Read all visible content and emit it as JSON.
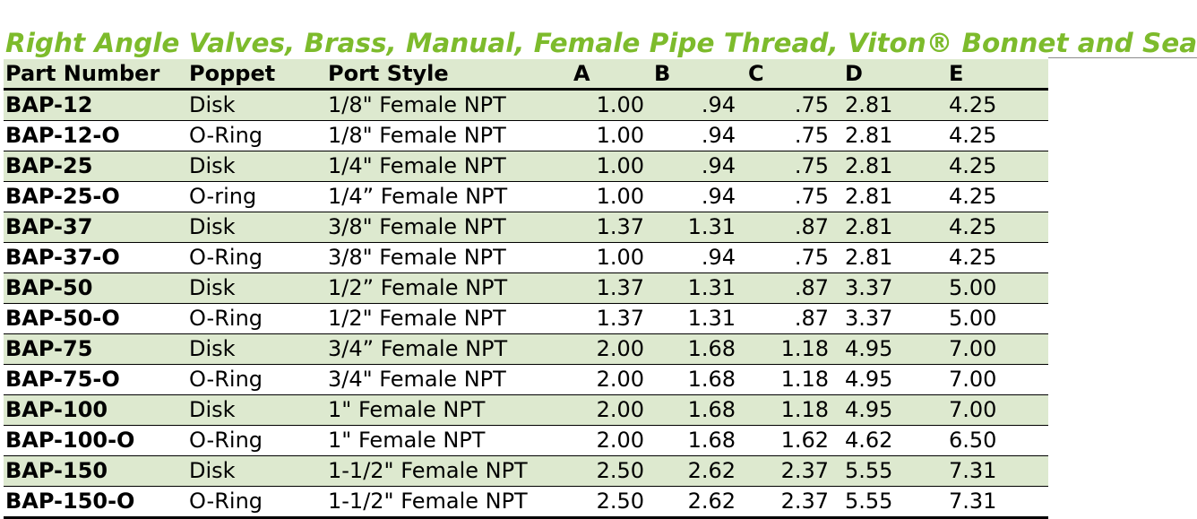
{
  "title": "Right Angle Valves, Brass, Manual, Female Pipe Thread, Viton® Bonnet and Seal",
  "colors": {
    "title": "#7dbb2c",
    "row_shade": "#dde9cf"
  },
  "table": {
    "headers": [
      "Part Number",
      "Poppet",
      "Port Style",
      "A",
      "B",
      "C",
      "D",
      "E"
    ],
    "rows": [
      [
        "BAP-12",
        "Disk",
        "1/8\" Female NPT",
        "1.00",
        ".94",
        ".75",
        "2.81",
        "4.25"
      ],
      [
        "BAP-12-O",
        "O-Ring",
        "1/8\" Female NPT",
        "1.00",
        ".94",
        ".75",
        "2.81",
        "4.25"
      ],
      [
        "BAP-25",
        "Disk",
        "1/4\" Female NPT",
        "1.00",
        ".94",
        ".75",
        "2.81",
        "4.25"
      ],
      [
        "BAP-25-O",
        "O-ring",
        "1/4” Female NPT",
        "1.00",
        ".94",
        ".75",
        "2.81",
        "4.25"
      ],
      [
        "BAP-37",
        "Disk",
        "3/8\" Female NPT",
        "1.37",
        "1.31",
        ".87",
        "2.81",
        "4.25"
      ],
      [
        "BAP-37-O",
        "O-Ring",
        "3/8\" Female NPT",
        "1.00",
        ".94",
        ".75",
        "2.81",
        "4.25"
      ],
      [
        "BAP-50",
        "Disk",
        "1/2” Female NPT",
        "1.37",
        "1.31",
        ".87",
        "3.37",
        "5.00"
      ],
      [
        "BAP-50-O",
        "O-Ring",
        "1/2\" Female NPT",
        "1.37",
        "1.31",
        ".87",
        "3.37",
        "5.00"
      ],
      [
        "BAP-75",
        "Disk",
        "3/4” Female NPT",
        "2.00",
        "1.68",
        "1.18",
        "4.95",
        "7.00"
      ],
      [
        "BAP-75-O",
        "O-Ring",
        "3/4\" Female NPT",
        "2.00",
        "1.68",
        "1.18",
        "4.95",
        "7.00"
      ],
      [
        "BAP-100",
        "Disk",
        "1\" Female NPT",
        "2.00",
        "1.68",
        "1.18",
        "4.95",
        "7.00"
      ],
      [
        "BAP-100-O",
        "O-Ring",
        "1\" Female NPT",
        "2.00",
        "1.68",
        "1.62",
        "4.62",
        "6.50"
      ],
      [
        "BAP-150",
        "Disk",
        "1-1/2\" Female NPT",
        "2.50",
        "2.62",
        "2.37",
        "5.55",
        "7.31"
      ],
      [
        "BAP-150-O",
        "O-Ring",
        "1-1/2\" Female NPT",
        "2.50",
        "2.62",
        "2.37",
        "5.55",
        "7.31"
      ]
    ]
  }
}
